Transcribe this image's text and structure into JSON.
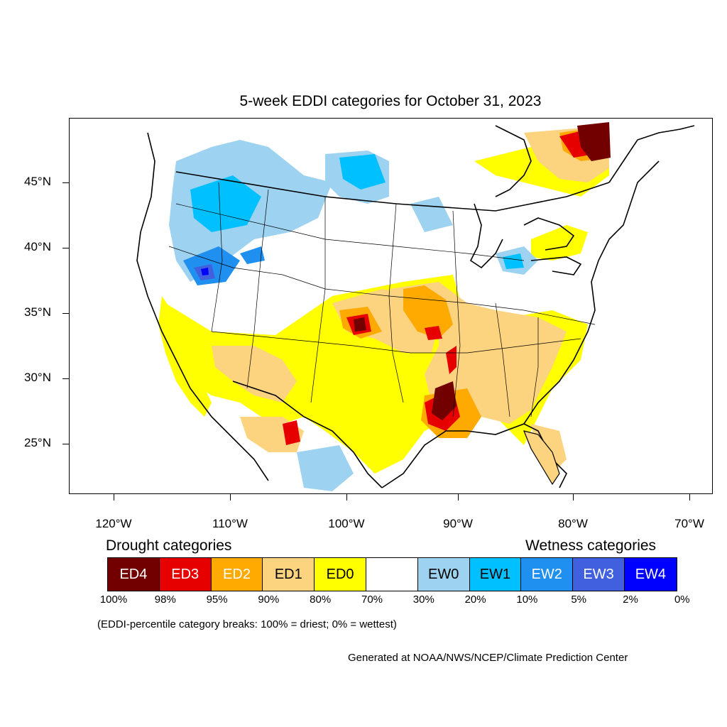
{
  "title": "5-week EDDI categories for October 31, 2023",
  "lat_labels": [
    "45°N",
    "40°N",
    "35°N",
    "30°N",
    "25°N"
  ],
  "lon_labels": [
    "120°W",
    "110°W",
    "100°W",
    "90°W",
    "80°W",
    "70°W"
  ],
  "legend": {
    "drought_heading": "Drought categories",
    "wetness_heading": "Wetness categories",
    "categories": [
      {
        "label": "ED4",
        "color": "#730000",
        "text_color": "#ffffff"
      },
      {
        "label": "ED3",
        "color": "#e60000",
        "text_color": "#ffffff"
      },
      {
        "label": "ED2",
        "color": "#ffaa00",
        "text_color": "#ffffff"
      },
      {
        "label": "ED1",
        "color": "#fcd37f",
        "text_color": "#000000"
      },
      {
        "label": "ED0",
        "color": "#ffff00",
        "text_color": "#000000"
      },
      {
        "label": "",
        "color": "#ffffff",
        "text_color": "#000000"
      },
      {
        "label": "EW0",
        "color": "#9dd3f0",
        "text_color": "#000000"
      },
      {
        "label": "EW1",
        "color": "#00c0ff",
        "text_color": "#000000"
      },
      {
        "label": "EW2",
        "color": "#1f8ff0",
        "text_color": "#ffffff"
      },
      {
        "label": "EW3",
        "color": "#4060e0",
        "text_color": "#ffffff"
      },
      {
        "label": "EW4",
        "color": "#0000ff",
        "text_color": "#ffffff"
      }
    ],
    "percentiles": [
      "100%",
      "98%",
      "95%",
      "90%",
      "80%",
      "70%",
      "30%",
      "20%",
      "10%",
      "5%",
      "2%",
      "0%"
    ]
  },
  "note": "(EDDI-percentile category breaks: 100% = driest; 0% = wettest)",
  "credit": "Generated at NOAA/NWS/NCEP/Climate Prediction Center"
}
